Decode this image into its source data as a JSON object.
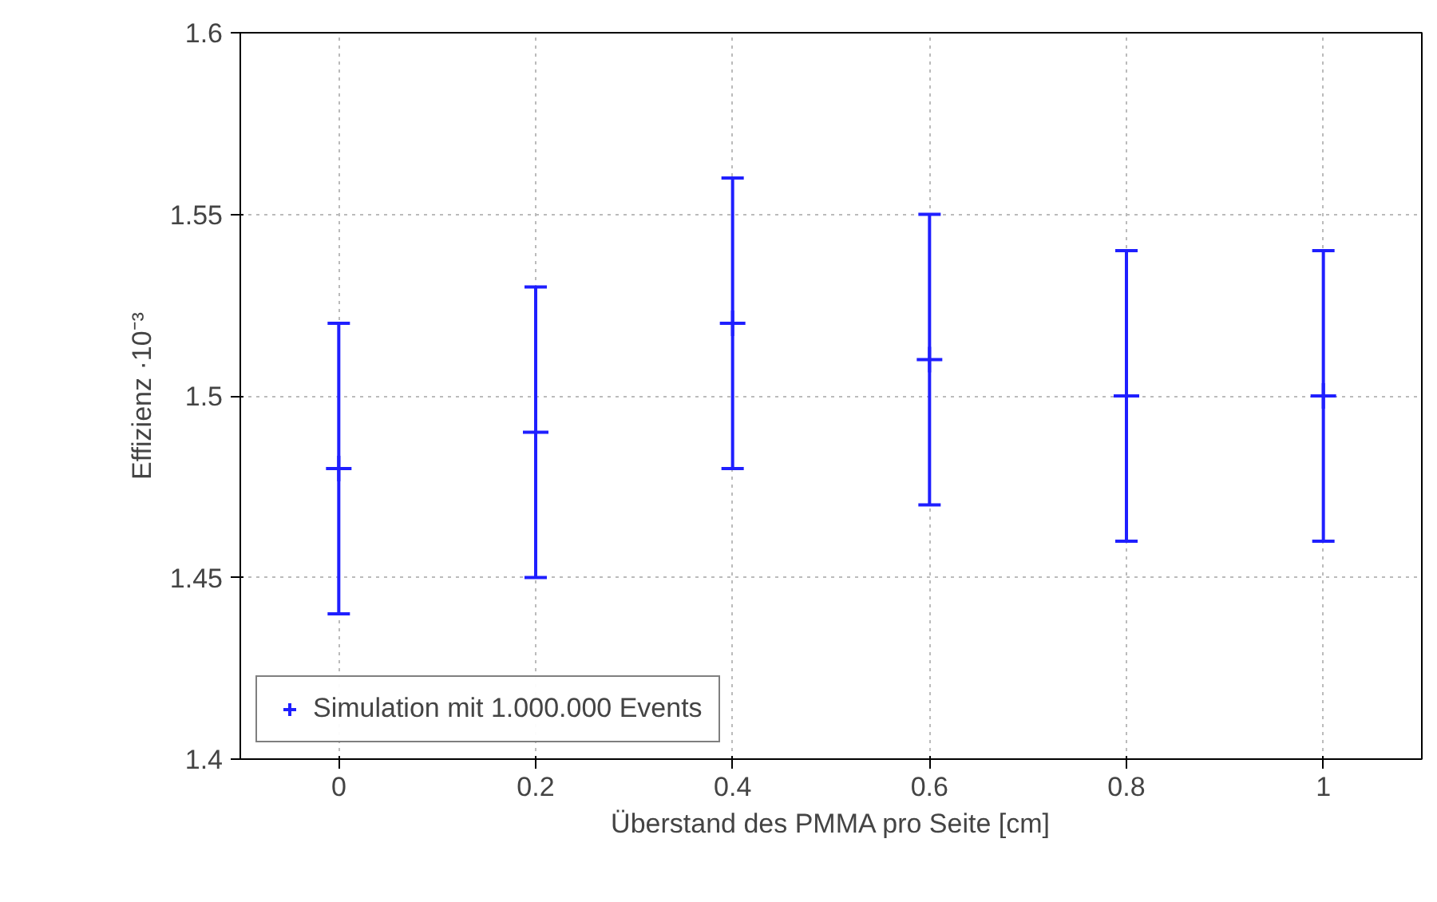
{
  "chart_data": {
    "type": "scatter",
    "xlabel": "Überstand des PMMA pro Seite [cm]",
    "ylabel": "Effizienz ·10⁻³",
    "x": [
      0,
      0.2,
      0.4,
      0.6,
      0.8,
      1
    ],
    "series": [
      {
        "name": "Simulation mit 1.000.000 Events",
        "color": "#1f1fff",
        "values": [
          1.48,
          1.49,
          1.52,
          1.51,
          1.5,
          1.5
        ],
        "errors": [
          0.04,
          0.04,
          0.04,
          0.04,
          0.04,
          0.04
        ]
      }
    ],
    "xlim": [
      -0.1,
      1.1
    ],
    "ylim": [
      1.4,
      1.6
    ],
    "xticks": [
      0,
      0.2,
      0.4,
      0.6,
      0.8,
      1
    ],
    "yticks": [
      1.4,
      1.45,
      1.5,
      1.55,
      1.6
    ],
    "grid": true,
    "legend": "bottom left",
    "marker": "cross"
  }
}
